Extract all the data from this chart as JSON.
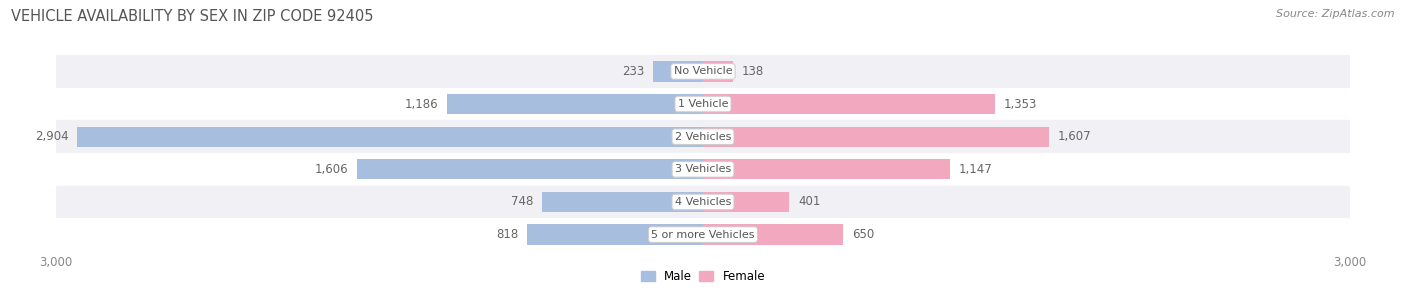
{
  "title": "VEHICLE AVAILABILITY BY SEX IN ZIP CODE 92405",
  "source": "Source: ZipAtlas.com",
  "categories": [
    "No Vehicle",
    "1 Vehicle",
    "2 Vehicles",
    "3 Vehicles",
    "4 Vehicles",
    "5 or more Vehicles"
  ],
  "male_values": [
    233,
    1186,
    2904,
    1606,
    748,
    818
  ],
  "female_values": [
    138,
    1353,
    1607,
    1147,
    401,
    650
  ],
  "male_color": "#a8bede",
  "female_color": "#f2a8bf",
  "row_bg_colors": [
    "#f0f0f5",
    "#ffffff"
  ],
  "max_value": 3000,
  "title_fontsize": 10.5,
  "source_fontsize": 8,
  "label_fontsize": 8.5,
  "category_fontsize": 8,
  "axis_fontsize": 8.5,
  "bar_height": 0.62,
  "figsize": [
    14.06,
    3.06
  ],
  "dpi": 100
}
